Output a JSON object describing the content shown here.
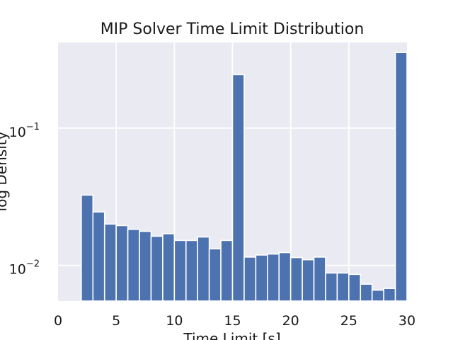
{
  "chart_data": {
    "type": "bar",
    "title": "MIP Solver Time Limit Distribution",
    "xlabel": "Time Limit [s]",
    "ylabel": "log Density",
    "xlim": [
      0,
      30
    ],
    "ylim": [
      0.0055,
      0.42
    ],
    "yscale": "log",
    "grid": true,
    "x_ticks": [
      {
        "value": 0,
        "label": "0"
      },
      {
        "value": 5,
        "label": "5"
      },
      {
        "value": 10,
        "label": "10"
      },
      {
        "value": 15,
        "label": "15"
      },
      {
        "value": 20,
        "label": "20"
      },
      {
        "value": 25,
        "label": "25"
      },
      {
        "value": 30,
        "label": "30"
      }
    ],
    "y_ticks": [
      {
        "value": 0.01,
        "base": "10",
        "exp": "−2"
      },
      {
        "value": 0.1,
        "base": "10",
        "exp": "−1"
      }
    ],
    "bin_edges": [
      2,
      3,
      4,
      5,
      6,
      7,
      8,
      9,
      10,
      11,
      12,
      13,
      14,
      15,
      16,
      17,
      18,
      19,
      20,
      21,
      22,
      23,
      24,
      25,
      26,
      27,
      28,
      29,
      30
    ],
    "values": [
      0.0325,
      0.0245,
      0.02,
      0.0195,
      0.0183,
      0.0177,
      0.0163,
      0.017,
      0.0152,
      0.0152,
      0.0161,
      0.0132,
      0.0152,
      0.245,
      0.0115,
      0.0119,
      0.0121,
      0.0124,
      0.0114,
      0.011,
      0.0115,
      0.0088,
      0.0088,
      0.0086,
      0.0073,
      0.0066,
      0.0068,
      0.355
    ],
    "bar_color": "#4c72b0",
    "background_color": "#eaeaf2"
  }
}
